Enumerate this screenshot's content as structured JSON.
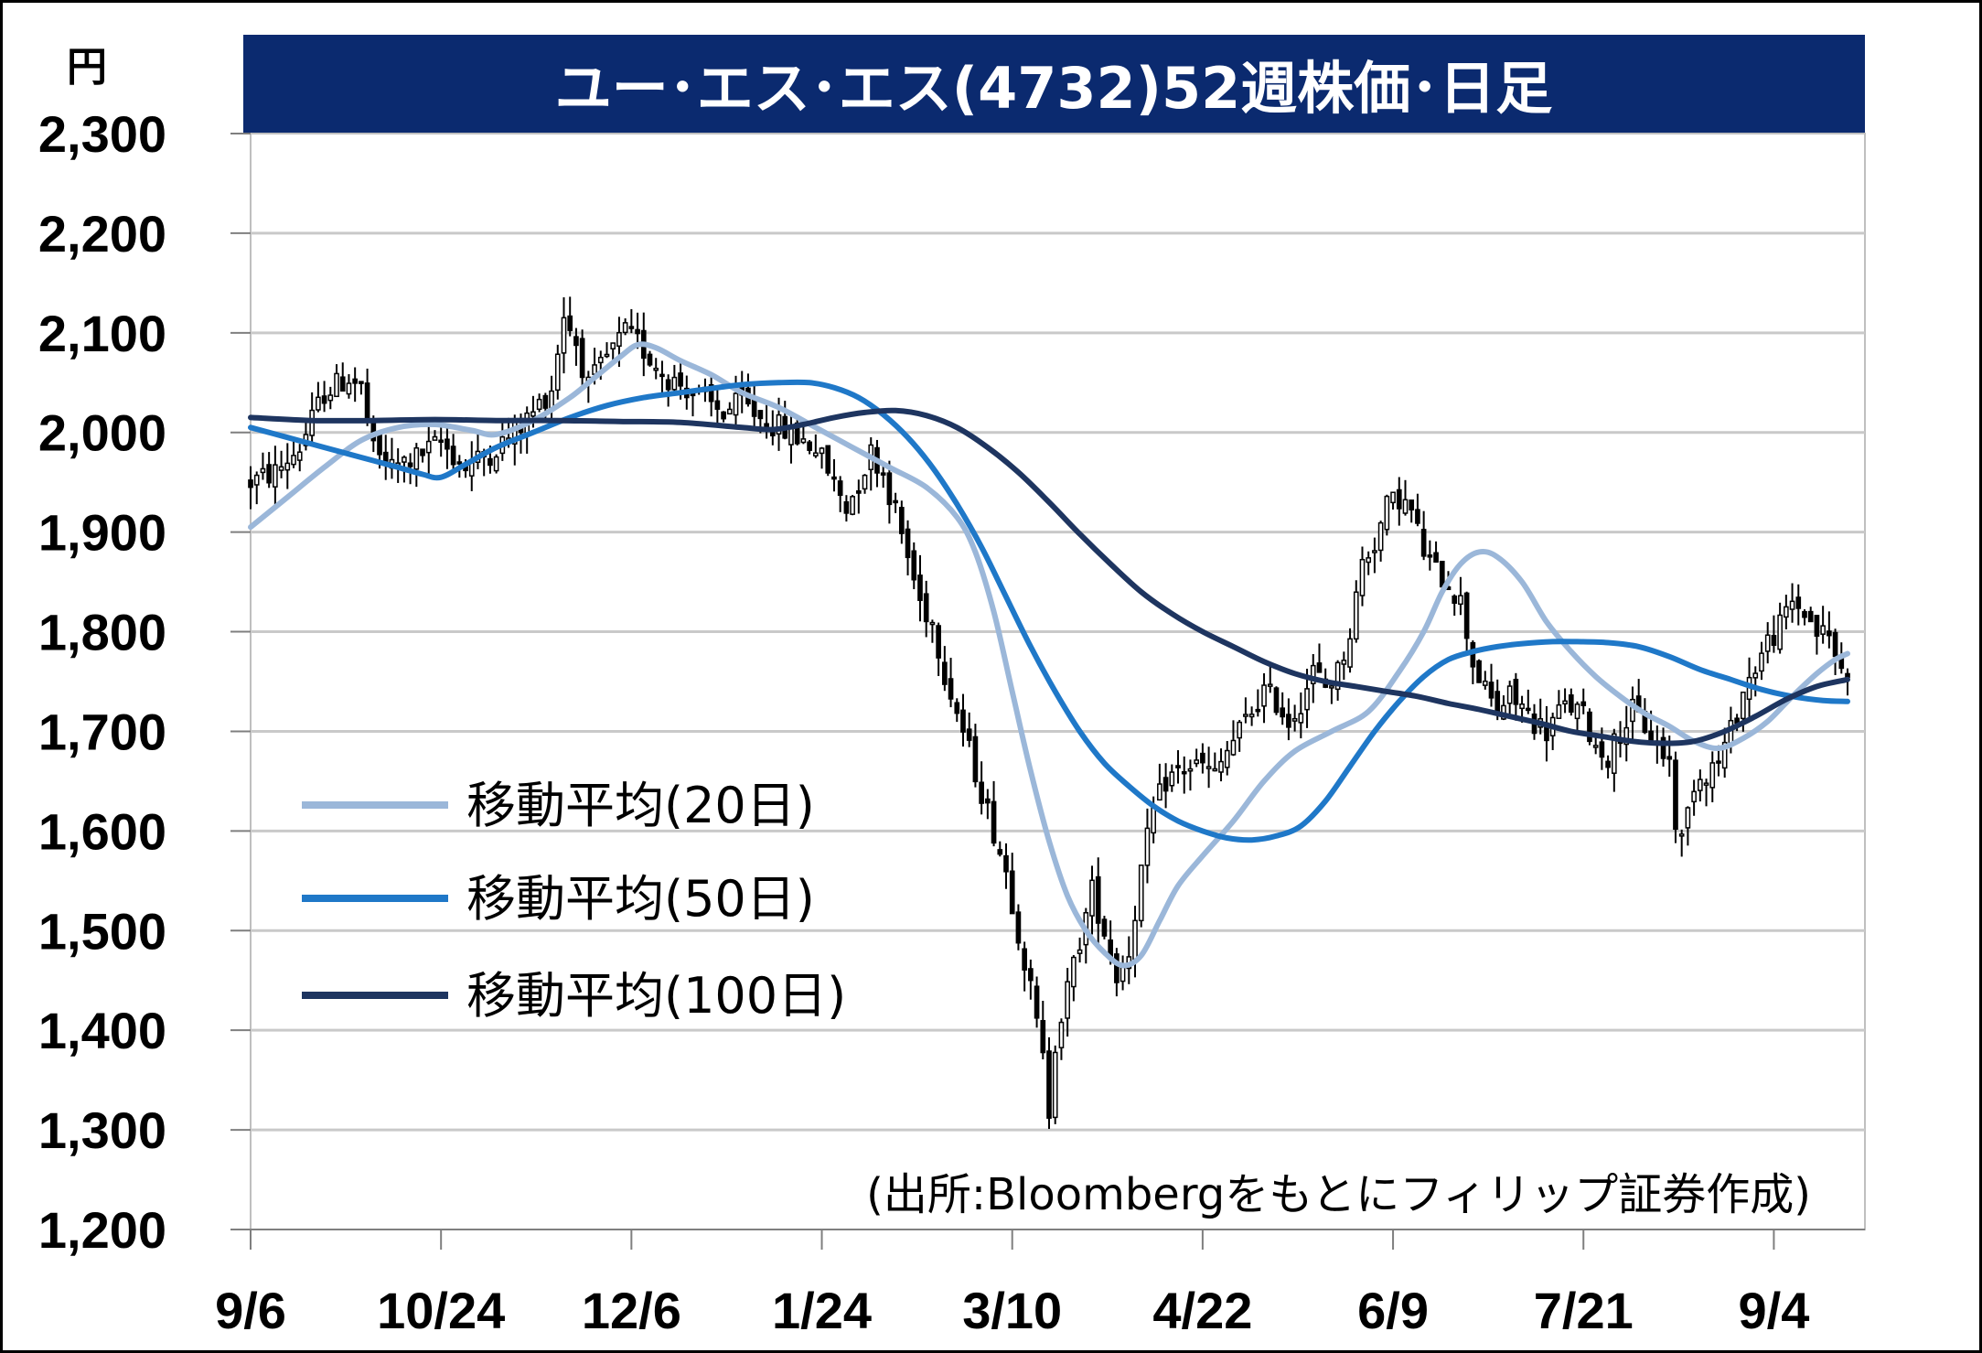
{
  "chart_data": {
    "type": "candlestick",
    "title": "ユー･エス･エス(4732)52週株価･日足",
    "y_unit": "円",
    "source": "(出所:Bloombergをもとにフィリップ証券作成)",
    "ylim": [
      1200,
      2300
    ],
    "y_ticks": [
      {
        "value": 1200,
        "label": "1,200"
      },
      {
        "value": 1300,
        "label": "1,300"
      },
      {
        "value": 1400,
        "label": "1,400"
      },
      {
        "value": 1500,
        "label": "1,500"
      },
      {
        "value": 1600,
        "label": "1,600"
      },
      {
        "value": 1700,
        "label": "1,700"
      },
      {
        "value": 1800,
        "label": "1,800"
      },
      {
        "value": 1900,
        "label": "1,900"
      },
      {
        "value": 2000,
        "label": "2,000"
      },
      {
        "value": 2100,
        "label": "2,100"
      },
      {
        "value": 2200,
        "label": "2,200"
      },
      {
        "value": 2300,
        "label": "2,300"
      }
    ],
    "x_ticks": [
      {
        "label": "9/6",
        "index": 0
      },
      {
        "label": "10/24",
        "index": 31
      },
      {
        "label": "12/6",
        "index": 62
      },
      {
        "label": "1/24",
        "index": 93
      },
      {
        "label": "3/10",
        "index": 124
      },
      {
        "label": "4/22",
        "index": 155
      },
      {
        "label": "6/9",
        "index": 186
      },
      {
        "label": "7/21",
        "index": 217
      },
      {
        "label": "9/4",
        "index": 248
      }
    ],
    "grid": true,
    "legend_position": "left-middle",
    "colors": {
      "title_bar": "#0B2A6F",
      "ma20": "#9BB7D9",
      "ma50": "#1F78C8",
      "ma100": "#1E3560",
      "grid": "#C9C9C9",
      "candle_up": "#FFFFFF",
      "candle_down": "#000000"
    },
    "series": [
      {
        "name": "移動平均(20日)",
        "key": "ma20",
        "points": [
          [
            0,
            1905
          ],
          [
            6,
            1935
          ],
          [
            12,
            1965
          ],
          [
            18,
            1992
          ],
          [
            24,
            2005
          ],
          [
            30,
            2008
          ],
          [
            36,
            2002
          ],
          [
            40,
            1998
          ],
          [
            46,
            2012
          ],
          [
            52,
            2035
          ],
          [
            56,
            2055
          ],
          [
            60,
            2075
          ],
          [
            63,
            2088
          ],
          [
            66,
            2085
          ],
          [
            70,
            2072
          ],
          [
            75,
            2058
          ],
          [
            80,
            2040
          ],
          [
            86,
            2025
          ],
          [
            92,
            2005
          ],
          [
            98,
            1985
          ],
          [
            104,
            1965
          ],
          [
            110,
            1945
          ],
          [
            115,
            1915
          ],
          [
            118,
            1880
          ],
          [
            121,
            1820
          ],
          [
            124,
            1740
          ],
          [
            127,
            1660
          ],
          [
            130,
            1590
          ],
          [
            133,
            1535
          ],
          [
            136,
            1500
          ],
          [
            139,
            1478
          ],
          [
            142,
            1465
          ],
          [
            145,
            1475
          ],
          [
            148,
            1510
          ],
          [
            151,
            1545
          ],
          [
            155,
            1575
          ],
          [
            160,
            1610
          ],
          [
            165,
            1650
          ],
          [
            170,
            1680
          ],
          [
            176,
            1700
          ],
          [
            182,
            1720
          ],
          [
            187,
            1760
          ],
          [
            191,
            1800
          ],
          [
            194,
            1840
          ],
          [
            197,
            1868
          ],
          [
            200,
            1880
          ],
          [
            203,
            1875
          ],
          [
            207,
            1850
          ],
          [
            211,
            1810
          ],
          [
            215,
            1780
          ],
          [
            219,
            1755
          ],
          [
            223,
            1735
          ],
          [
            227,
            1718
          ],
          [
            231,
            1705
          ],
          [
            235,
            1690
          ],
          [
            239,
            1683
          ],
          [
            243,
            1693
          ],
          [
            247,
            1710
          ],
          [
            251,
            1735
          ],
          [
            255,
            1758
          ],
          [
            258,
            1772
          ],
          [
            260,
            1778
          ]
        ]
      },
      {
        "name": "移動平均(50日)",
        "key": "ma50",
        "points": [
          [
            0,
            2005
          ],
          [
            6,
            1995
          ],
          [
            12,
            1985
          ],
          [
            18,
            1975
          ],
          [
            24,
            1965
          ],
          [
            28,
            1958
          ],
          [
            31,
            1955
          ],
          [
            35,
            1968
          ],
          [
            40,
            1985
          ],
          [
            46,
            2000
          ],
          [
            52,
            2015
          ],
          [
            58,
            2027
          ],
          [
            64,
            2035
          ],
          [
            70,
            2040
          ],
          [
            76,
            2045
          ],
          [
            80,
            2048
          ],
          [
            86,
            2050
          ],
          [
            91,
            2050
          ],
          [
            95,
            2045
          ],
          [
            99,
            2035
          ],
          [
            103,
            2018
          ],
          [
            107,
            1995
          ],
          [
            111,
            1965
          ],
          [
            115,
            1928
          ],
          [
            119,
            1885
          ],
          [
            123,
            1835
          ],
          [
            127,
            1785
          ],
          [
            131,
            1740
          ],
          [
            135,
            1700
          ],
          [
            139,
            1668
          ],
          [
            143,
            1645
          ],
          [
            147,
            1625
          ],
          [
            151,
            1610
          ],
          [
            155,
            1600
          ],
          [
            159,
            1593
          ],
          [
            163,
            1591
          ],
          [
            167,
            1595
          ],
          [
            171,
            1605
          ],
          [
            175,
            1630
          ],
          [
            179,
            1665
          ],
          [
            183,
            1700
          ],
          [
            187,
            1730
          ],
          [
            191,
            1755
          ],
          [
            195,
            1772
          ],
          [
            199,
            1780
          ],
          [
            203,
            1785
          ],
          [
            207,
            1788
          ],
          [
            212,
            1790
          ],
          [
            216,
            1790
          ],
          [
            221,
            1789
          ],
          [
            226,
            1785
          ],
          [
            231,
            1775
          ],
          [
            236,
            1762
          ],
          [
            241,
            1752
          ],
          [
            246,
            1742
          ],
          [
            251,
            1735
          ],
          [
            256,
            1731
          ],
          [
            260,
            1730
          ]
        ]
      },
      {
        "name": "移動平均(100日)",
        "key": "ma100",
        "points": [
          [
            0,
            2015
          ],
          [
            10,
            2012
          ],
          [
            20,
            2012
          ],
          [
            30,
            2013
          ],
          [
            40,
            2012
          ],
          [
            50,
            2012
          ],
          [
            60,
            2011
          ],
          [
            70,
            2010
          ],
          [
            80,
            2005
          ],
          [
            85,
            2003
          ],
          [
            90,
            2008
          ],
          [
            95,
            2015
          ],
          [
            100,
            2020
          ],
          [
            105,
            2022
          ],
          [
            110,
            2017
          ],
          [
            115,
            2005
          ],
          [
            120,
            1985
          ],
          [
            125,
            1960
          ],
          [
            130,
            1930
          ],
          [
            135,
            1898
          ],
          [
            140,
            1868
          ],
          [
            145,
            1840
          ],
          [
            150,
            1818
          ],
          [
            155,
            1800
          ],
          [
            160,
            1785
          ],
          [
            165,
            1770
          ],
          [
            170,
            1758
          ],
          [
            175,
            1750
          ],
          [
            180,
            1745
          ],
          [
            185,
            1740
          ],
          [
            190,
            1735
          ],
          [
            195,
            1728
          ],
          [
            200,
            1722
          ],
          [
            205,
            1715
          ],
          [
            210,
            1708
          ],
          [
            215,
            1700
          ],
          [
            220,
            1695
          ],
          [
            225,
            1690
          ],
          [
            230,
            1688
          ],
          [
            235,
            1690
          ],
          [
            240,
            1700
          ],
          [
            245,
            1715
          ],
          [
            250,
            1732
          ],
          [
            255,
            1745
          ],
          [
            260,
            1752
          ]
        ]
      }
    ],
    "price_path": [
      [
        0,
        1950
      ],
      [
        4,
        1960
      ],
      [
        8,
        1985
      ],
      [
        12,
        2040
      ],
      [
        16,
        2055
      ],
      [
        18,
        2045
      ],
      [
        20,
        1980
      ],
      [
        23,
        1965
      ],
      [
        27,
        1975
      ],
      [
        31,
        1990
      ],
      [
        35,
        1965
      ],
      [
        39,
        1980
      ],
      [
        43,
        2000
      ],
      [
        46,
        2020
      ],
      [
        49,
        2045
      ],
      [
        51,
        2120
      ],
      [
        53,
        2090
      ],
      [
        55,
        2045
      ],
      [
        58,
        2075
      ],
      [
        61,
        2100
      ],
      [
        63,
        2090
      ],
      [
        65,
        2075
      ],
      [
        68,
        2055
      ],
      [
        71,
        2045
      ],
      [
        74,
        2030
      ],
      [
        77,
        2020
      ],
      [
        80,
        2030
      ],
      [
        83,
        2015
      ],
      [
        86,
        2005
      ],
      [
        89,
        1995
      ],
      [
        92,
        1985
      ],
      [
        95,
        1950
      ],
      [
        97,
        1925
      ],
      [
        99,
        1950
      ],
      [
        101,
        1980
      ],
      [
        103,
        1960
      ],
      [
        105,
        1920
      ],
      [
        107,
        1875
      ],
      [
        109,
        1830
      ],
      [
        111,
        1810
      ],
      [
        113,
        1760
      ],
      [
        115,
        1720
      ],
      [
        117,
        1680
      ],
      [
        119,
        1640
      ],
      [
        121,
        1600
      ],
      [
        123,
        1560
      ],
      [
        125,
        1500
      ],
      [
        127,
        1440
      ],
      [
        129,
        1370
      ],
      [
        130,
        1320
      ],
      [
        131,
        1390
      ],
      [
        133,
        1440
      ],
      [
        135,
        1490
      ],
      [
        137,
        1540
      ],
      [
        139,
        1500
      ],
      [
        141,
        1455
      ],
      [
        143,
        1480
      ],
      [
        145,
        1560
      ],
      [
        147,
        1620
      ],
      [
        149,
        1650
      ],
      [
        151,
        1660
      ],
      [
        153,
        1665
      ],
      [
        155,
        1665
      ],
      [
        157,
        1655
      ],
      [
        159,
        1680
      ],
      [
        161,
        1700
      ],
      [
        163,
        1720
      ],
      [
        165,
        1740
      ],
      [
        167,
        1730
      ],
      [
        169,
        1710
      ],
      [
        171,
        1730
      ],
      [
        173,
        1760
      ],
      [
        175,
        1745
      ],
      [
        177,
        1760
      ],
      [
        179,
        1800
      ],
      [
        181,
        1870
      ],
      [
        183,
        1890
      ],
      [
        185,
        1925
      ],
      [
        187,
        1935
      ],
      [
        189,
        1920
      ],
      [
        191,
        1880
      ],
      [
        193,
        1860
      ],
      [
        195,
        1850
      ],
      [
        197,
        1830
      ],
      [
        199,
        1770
      ],
      [
        201,
        1740
      ],
      [
        203,
        1720
      ],
      [
        205,
        1735
      ],
      [
        207,
        1725
      ],
      [
        209,
        1710
      ],
      [
        211,
        1700
      ],
      [
        213,
        1720
      ],
      [
        215,
        1725
      ],
      [
        217,
        1715
      ],
      [
        219,
        1685
      ],
      [
        221,
        1675
      ],
      [
        223,
        1700
      ],
      [
        225,
        1720
      ],
      [
        227,
        1705
      ],
      [
        229,
        1685
      ],
      [
        231,
        1670
      ],
      [
        232,
        1610
      ],
      [
        233,
        1590
      ],
      [
        235,
        1650
      ],
      [
        237,
        1660
      ],
      [
        239,
        1670
      ],
      [
        241,
        1700
      ],
      [
        243,
        1740
      ],
      [
        245,
        1765
      ],
      [
        247,
        1790
      ],
      [
        249,
        1805
      ],
      [
        251,
        1830
      ],
      [
        253,
        1820
      ],
      [
        255,
        1800
      ],
      [
        257,
        1795
      ],
      [
        259,
        1760
      ],
      [
        260,
        1765
      ]
    ]
  }
}
